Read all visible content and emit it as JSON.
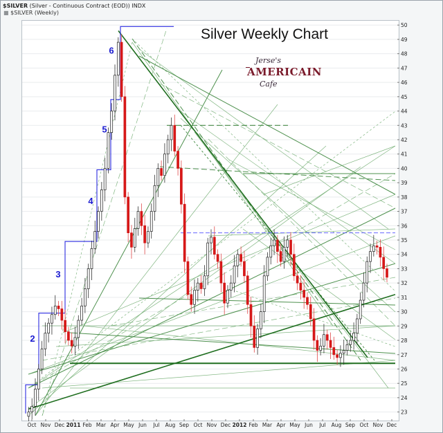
{
  "header": {
    "symbol": "$SILVER",
    "description": "(Silver - Continuous Contract (EOD))",
    "exchange": "INDX",
    "legend_label": "$SILVER (Weekly)",
    "legend_marker": "■"
  },
  "logo": {
    "line1": "Jerse's",
    "line2": "AMERICAIN",
    "line3": "Cafe"
  },
  "chart_data": {
    "type": "candlestick",
    "title": "Silver Weekly Chart",
    "frequency": "weekly",
    "ylim": [
      22.5,
      50.3
    ],
    "y_ticks": [
      23,
      24,
      25,
      26,
      27,
      28,
      29,
      30,
      31,
      32,
      33,
      34,
      35,
      36,
      37,
      38,
      39,
      40,
      41,
      42,
      43,
      44,
      45,
      46,
      47,
      48,
      49,
      50
    ],
    "x_ticks": [
      "Oct",
      "Nov",
      "Dec",
      "2011",
      "Feb",
      "Mar",
      "Apr",
      "May",
      "Jun",
      "Jul",
      "Aug",
      "Sep",
      "Oct",
      "Nov",
      "Dec",
      "2012",
      "Feb",
      "Mar",
      "Apr",
      "May",
      "Jun",
      "Jul",
      "Aug",
      "Sep",
      "Oct",
      "Nov",
      "Dec"
    ],
    "wave_labels": [
      {
        "label": "2",
        "price": 27.9
      },
      {
        "label": "3",
        "price": 32.4
      },
      {
        "label": "4",
        "price": 37.5
      },
      {
        "label": "5",
        "price": 42.5
      },
      {
        "label": "6",
        "price": 48.0
      }
    ],
    "close_series": [
      23.0,
      23.4,
      24.6,
      26.0,
      27.4,
      28.5,
      29.2,
      29.8,
      30.4,
      30.2,
      29.4,
      28.6,
      28.0,
      27.6,
      28.2,
      29.4,
      30.4,
      31.6,
      33.0,
      34.4,
      35.6,
      37.0,
      38.5,
      40.0,
      42.5,
      44.0,
      46.5,
      48.8,
      45.0,
      38.0,
      35.5,
      34.5,
      35.8,
      37.0,
      36.0,
      34.8,
      35.6,
      37.0,
      38.8,
      40.0,
      39.5,
      41.0,
      42.0,
      43.0,
      41.2,
      40.0,
      37.5,
      33.5,
      31.2,
      30.5,
      31.5,
      32.0,
      31.6,
      32.5,
      34.8,
      35.2,
      34.0,
      33.5,
      32.0,
      30.6,
      31.5,
      32.0,
      33.2,
      34.0,
      33.5,
      32.5,
      30.5,
      29.0,
      27.5,
      28.8,
      30.0,
      32.5,
      33.8,
      34.6,
      35.0,
      34.2,
      33.5,
      34.5,
      35.0,
      34.0,
      32.5,
      32.0,
      31.5,
      31.0,
      30.5,
      29.5,
      28.0,
      27.3,
      27.6,
      28.4,
      28.0,
      27.5,
      27.0,
      26.8,
      27.1,
      27.3,
      27.7,
      28.0,
      28.5,
      29.5,
      30.8,
      32.0,
      33.5,
      34.2,
      34.6,
      34.5,
      33.8,
      33.0,
      32.4
    ]
  }
}
